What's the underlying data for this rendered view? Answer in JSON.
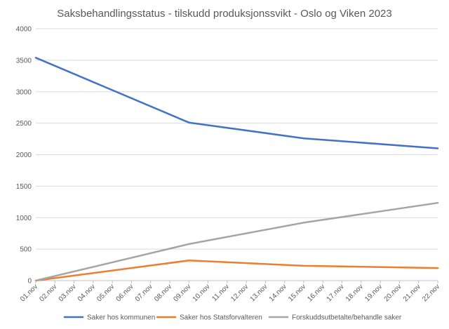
{
  "chart_data": {
    "type": "line",
    "title": "Saksbehandlingsstatus - tilskudd produksjonssvikt - Oslo og Viken 2023",
    "xlabel": "",
    "ylabel": "",
    "ylim": [
      0,
      4000
    ],
    "yticks": [
      "0",
      "500",
      "1000",
      "1500",
      "2000",
      "2500",
      "3000",
      "3500",
      "4000"
    ],
    "ytick_values": [
      0,
      500,
      1000,
      1500,
      2000,
      2500,
      3000,
      3500,
      4000
    ],
    "grid": true,
    "legend_position": "bottom",
    "categories": [
      "01.nov",
      "02.nov",
      "03.nov",
      "04.nov",
      "05.nov",
      "06.nov",
      "07.nov",
      "08.nov",
      "09.nov",
      "10.nov",
      "11.nov",
      "12.nov",
      "13.nov",
      "14.nov",
      "15.nov",
      "16.nov",
      "17.nov",
      "18.nov",
      "19.nov",
      "20.nov",
      "21.nov",
      "22.nov"
    ],
    "series": [
      {
        "name": "Saker hos kommunen",
        "color": "#4472c4",
        "points": [
          [
            "01.nov",
            3540
          ],
          [
            "09.nov",
            2510
          ],
          [
            "15.nov",
            2260
          ],
          [
            "22.nov",
            2100
          ]
        ]
      },
      {
        "name": "Saker hos Statsforvalteren",
        "color": "#ed7d31",
        "points": [
          [
            "01.nov",
            0
          ],
          [
            "09.nov",
            320
          ],
          [
            "15.nov",
            235
          ],
          [
            "22.nov",
            200
          ]
        ]
      },
      {
        "name": "Forskuddsutbetalte/behandle saker",
        "color": "#a5a5a5",
        "points": [
          [
            "01.nov",
            0
          ],
          [
            "09.nov",
            580
          ],
          [
            "15.nov",
            920
          ],
          [
            "22.nov",
            1235
          ]
        ]
      }
    ]
  }
}
